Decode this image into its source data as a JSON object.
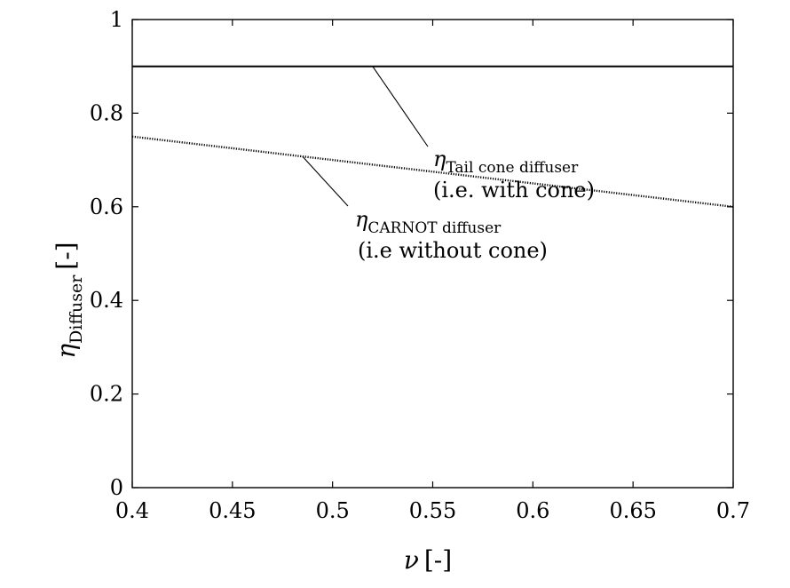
{
  "chart_data": {
    "type": "line",
    "xlabel": {
      "symbol": "ν",
      "unit": "[-]"
    },
    "ylabel": {
      "symbol": "η",
      "subscript": "Diffuser",
      "unit": "[-]"
    },
    "xlim": [
      0.4,
      0.7
    ],
    "ylim": [
      0,
      1
    ],
    "xticks": [
      "0.4",
      "0.45",
      "0.5",
      "0.55",
      "0.6",
      "0.65",
      "0.7"
    ],
    "yticks": [
      "0",
      "0.2",
      "0.4",
      "0.6",
      "0.8",
      "1"
    ],
    "grid": false,
    "series": [
      {
        "x": [
          0.4,
          0.7
        ],
        "y": [
          0.9,
          0.9
        ],
        "style": "solid",
        "color": "#000000",
        "annotation": {
          "symbol": "η",
          "subscript": "Tail cone diffuser",
          "note": "(i.e. with cone)",
          "pointer_x": 0.52,
          "pointer_y": 0.9
        }
      },
      {
        "x": [
          0.4,
          0.7
        ],
        "y": [
          0.75,
          0.6
        ],
        "style": "dotted",
        "color": "#000000",
        "annotation": {
          "symbol": "η",
          "subscript": "CARNOT diffuser",
          "note": "(i.e without cone)",
          "pointer_x": 0.485,
          "pointer_y": 0.7075
        }
      }
    ]
  }
}
